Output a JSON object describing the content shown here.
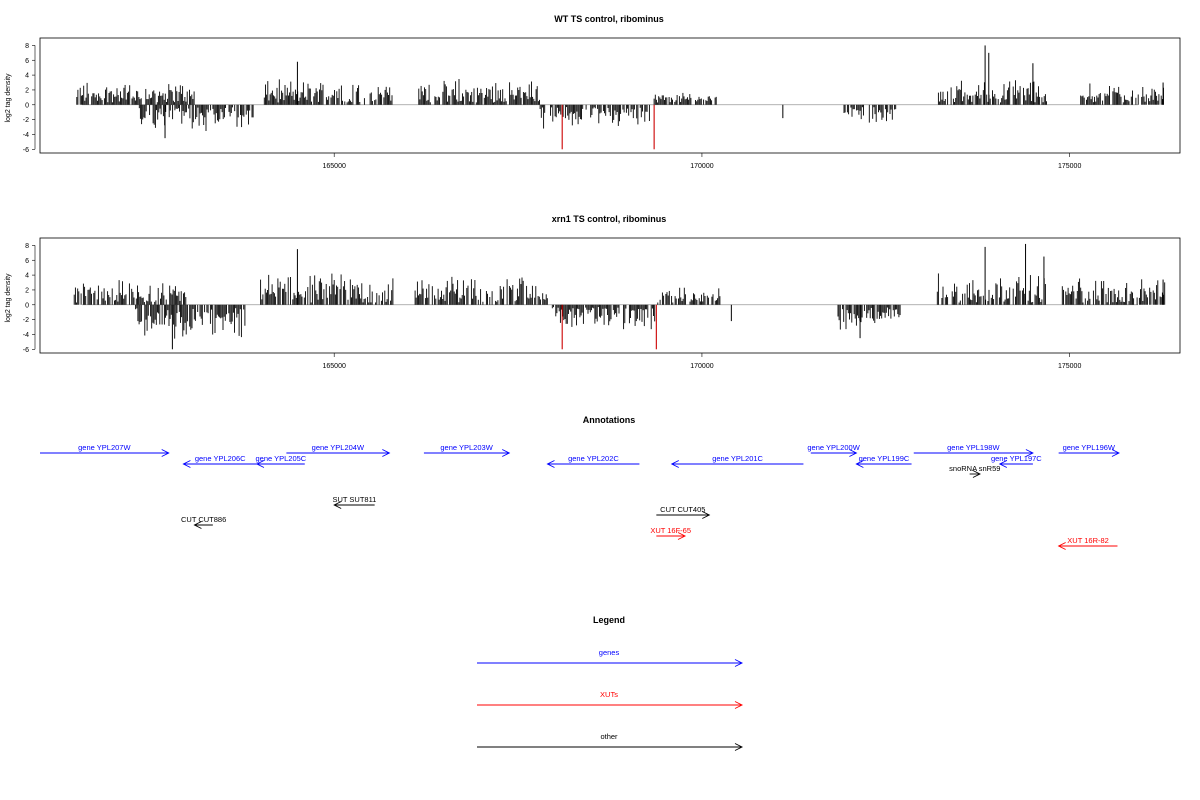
{
  "chart_data": [
    {
      "type": "bar",
      "title": "WT TS control, ribominus",
      "ylabel": "log2 tag density",
      "xlim": [
        161000,
        176500
      ],
      "ylim": [
        -6.5,
        9
      ],
      "y_ticks": [
        "8",
        "6",
        "4",
        "2",
        "0",
        "-2",
        "-4",
        "-6"
      ],
      "x_ticks": [
        "165000",
        "170000",
        "175000"
      ],
      "highlight_color": "#cc0000",
      "bar_color": "#000000",
      "series": [
        {
          "segments": [
            {
              "x": [
                161500,
                163100
              ],
              "sign": 1,
              "amp": 2.6
            },
            {
              "x": [
                162350,
                163900
              ],
              "sign": -1,
              "amp": 3.0
            },
            {
              "x": [
                164050,
                165800
              ],
              "sign": 1,
              "amp": 2.8
            },
            {
              "x": [
                166150,
                167800
              ],
              "sign": 1,
              "amp": 2.8
            },
            {
              "x": [
                167800,
                169300
              ],
              "sign": -1,
              "amp": 2.6
            },
            {
              "x": [
                169350,
                170200
              ],
              "sign": 1,
              "amp": 1.2
            },
            {
              "x": [
                171900,
                172650
              ],
              "sign": -1,
              "amp": 2.2
            },
            {
              "x": [
                173200,
                174700
              ],
              "sign": 1,
              "amp": 2.8
            },
            {
              "x": [
                175150,
                176300
              ],
              "sign": 1,
              "amp": 2.3
            }
          ],
          "peaks": [
            {
              "x": 164500,
              "value": 5.8
            },
            {
              "x": 173850,
              "value": 8.0
            },
            {
              "x": 173900,
              "value": 7.0
            },
            {
              "x": 174500,
              "value": 5.6
            },
            {
              "x": 176270,
              "value": 3.0
            },
            {
              "x": 162700,
              "value": -4.5
            },
            {
              "x": 171100,
              "value": -1.8
            }
          ],
          "highlights": [
            {
              "x": 168100,
              "value": -6.0
            },
            {
              "x": 169350,
              "value": -6.0
            }
          ]
        }
      ]
    },
    {
      "type": "bar",
      "title": "xrn1 TS control, ribominus",
      "ylabel": "log2 tag density",
      "xlim": [
        161000,
        176500
      ],
      "ylim": [
        -6.5,
        9
      ],
      "y_ticks": [
        "8",
        "6",
        "4",
        "2",
        "0",
        "-2",
        "-4",
        "-6"
      ],
      "x_ticks": [
        "165000",
        "170000",
        "175000"
      ],
      "highlight_color": "#cc0000",
      "bar_color": "#000000",
      "series": [
        {
          "segments": [
            {
              "x": [
                161450,
                163000
              ],
              "sign": 1,
              "amp": 2.8
            },
            {
              "x": [
                162300,
                163800
              ],
              "sign": -1,
              "amp": 3.8
            },
            {
              "x": [
                164000,
                165800
              ],
              "sign": 1,
              "amp": 3.6
            },
            {
              "x": [
                166100,
                167900
              ],
              "sign": 1,
              "amp": 3.5
            },
            {
              "x": [
                167950,
                169400
              ],
              "sign": -1,
              "amp": 2.8
            },
            {
              "x": [
                169400,
                170250
              ],
              "sign": 1,
              "amp": 1.8
            },
            {
              "x": [
                171850,
                172700
              ],
              "sign": -1,
              "amp": 3.0
            },
            {
              "x": [
                173200,
                174700
              ],
              "sign": 1,
              "amp": 3.6
            },
            {
              "x": [
                174900,
                176300
              ],
              "sign": 1,
              "amp": 3.0
            }
          ],
          "peaks": [
            {
              "x": 164500,
              "value": 7.5
            },
            {
              "x": 173850,
              "value": 7.8
            },
            {
              "x": 174400,
              "value": 8.2
            },
            {
              "x": 174650,
              "value": 6.5
            },
            {
              "x": 176270,
              "value": 3.4
            },
            {
              "x": 162800,
              "value": -6.0
            },
            {
              "x": 172150,
              "value": -4.5
            },
            {
              "x": 170400,
              "value": -2.2
            }
          ],
          "highlights": [
            {
              "x": 168100,
              "value": -6.0
            },
            {
              "x": 169380,
              "value": -6.0
            }
          ]
        }
      ]
    }
  ],
  "annotations": {
    "title": "Annotations",
    "features": [
      {
        "label": "gene YPL207W",
        "color": "#0000ff",
        "start": 161000,
        "end": 162750,
        "strand": "+",
        "row": 0
      },
      {
        "label": "gene YPL206C",
        "color": "#0000ff",
        "start": 162950,
        "end": 163950,
        "strand": "-",
        "row": 1
      },
      {
        "label": "gene YPL205C",
        "color": "#0000ff",
        "start": 163950,
        "end": 164600,
        "strand": "-",
        "row": 1
      },
      {
        "label": "gene YPL204W",
        "color": "#0000ff",
        "start": 164350,
        "end": 165750,
        "strand": "+",
        "row": 0
      },
      {
        "label": "gene YPL203W",
        "color": "#0000ff",
        "start": 166220,
        "end": 167380,
        "strand": "+",
        "row": 0
      },
      {
        "label": "gene YPL202C",
        "color": "#0000ff",
        "start": 167900,
        "end": 169150,
        "strand": "-",
        "row": 1
      },
      {
        "label": "gene YPL201C",
        "color": "#0000ff",
        "start": 169590,
        "end": 171380,
        "strand": "-",
        "row": 1
      },
      {
        "label": "gene YPL200W",
        "color": "#0000ff",
        "start": 171480,
        "end": 172100,
        "strand": "+",
        "row": 0
      },
      {
        "label": "gene YPL199C",
        "color": "#0000ff",
        "start": 172100,
        "end": 172850,
        "strand": "-",
        "row": 1
      },
      {
        "label": "gene YPL198W",
        "color": "#0000ff",
        "start": 172880,
        "end": 174500,
        "strand": "+",
        "row": 0
      },
      {
        "label": "gene YPL197C",
        "color": "#0000ff",
        "start": 174050,
        "end": 174500,
        "strand": "-",
        "row": 1
      },
      {
        "label": "gene YPL196W",
        "color": "#0000ff",
        "start": 174850,
        "end": 175670,
        "strand": "+",
        "row": 0
      },
      {
        "label": "snoRNA snR59",
        "color": "#000000",
        "start": 173640,
        "end": 173780,
        "strand": "+",
        "row": 2
      },
      {
        "label": "SUT SUT811",
        "color": "#000000",
        "start": 165000,
        "end": 165550,
        "strand": "-",
        "row": 3
      },
      {
        "label": "CUT CUT886",
        "color": "#000000",
        "start": 163100,
        "end": 163350,
        "strand": "-",
        "row": 4
      },
      {
        "label": "CUT CUT405",
        "color": "#000000",
        "start": 169380,
        "end": 170100,
        "strand": "+",
        "row": 5
      },
      {
        "label": "XUT 16F-65",
        "color": "#ff0000",
        "start": 169380,
        "end": 169770,
        "strand": "+",
        "row": 6
      },
      {
        "label": "XUT 16R-82",
        "color": "#ff0000",
        "start": 174850,
        "end": 175650,
        "strand": "-",
        "row": 7
      }
    ]
  },
  "legend": {
    "title": "Legend",
    "items": [
      {
        "label": "genes",
        "color": "#0000ff"
      },
      {
        "label": "XUTs",
        "color": "#ff0000"
      },
      {
        "label": "other",
        "color": "#000000"
      }
    ]
  }
}
